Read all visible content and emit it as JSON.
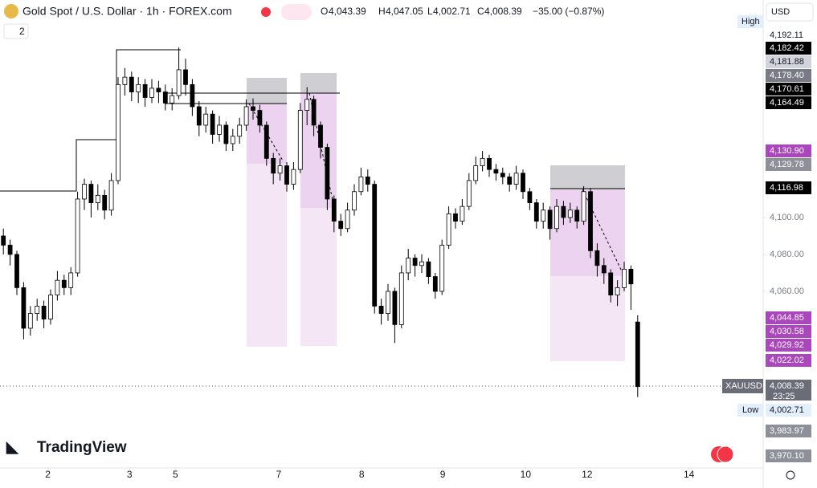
{
  "header": {
    "title": "Gold Spot / U.S. Dollar · 1h · FOREX.com",
    "o_label": "O",
    "o": "4,043.39",
    "h_label": "H",
    "h": "4,047.05",
    "l_label": "L",
    "l": "4,002.71",
    "c_label": "C",
    "c": "4,008.39",
    "change": "−35.00 (−0.87%)",
    "indicators": "2"
  },
  "scale": {
    "currency": "USD",
    "high": "High",
    "low": "Low",
    "symbol": "XAUUSD",
    "countdown": "23:25",
    "labels": [
      "4,192.11",
      "4,182.42",
      "4,181.88",
      "4,178.40",
      "4,170.61",
      "4,164.49",
      "4,130.90",
      "4,129.78",
      "4,116.98",
      "4,044.85",
      "4,030.58",
      "4,029.92",
      "4,022.02",
      "4,008.39",
      "4,002.71",
      "3,983.97",
      "3,970.10"
    ]
  },
  "brand": "TradingView",
  "chart_data": {
    "type": "candlestick",
    "up_color": "#ffffff",
    "down_color": "#000000",
    "border_color": "#000000",
    "xlim": [
      -0.5,
      112
    ],
    "ylim": [
      3961.3,
      4217.8
    ],
    "xticks": [
      {
        "value": 6.6,
        "label": "2"
      },
      {
        "value": 18.7,
        "label": "3"
      },
      {
        "value": 25.5,
        "label": "5"
      },
      {
        "value": 40.8,
        "label": "7"
      },
      {
        "value": 53.1,
        "label": "8"
      },
      {
        "value": 65.1,
        "label": "9"
      },
      {
        "value": 77.4,
        "label": "10"
      },
      {
        "value": 86.5,
        "label": "12"
      },
      {
        "value": 101.6,
        "label": "14"
      }
    ],
    "yticks": [
      {
        "value": 4100,
        "label": "4,100.00"
      },
      {
        "value": 4080,
        "label": "4,080.00"
      },
      {
        "value": 4060,
        "label": "4,060.00"
      }
    ],
    "open": [
      4090,
      4085,
      4080,
      4062,
      4040,
      4048,
      4052,
      4045,
      4058,
      4066,
      4062,
      4070,
      4110,
      4118,
      4108,
      4112,
      4104,
      4120,
      4172,
      4176,
      4168,
      4172,
      4165,
      4170,
      4168,
      4162,
      4166,
      4180,
      4172,
      4160,
      4150,
      4156,
      4145,
      4150,
      4140,
      4144,
      4150,
      4160,
      4158,
      4150,
      4132,
      4124,
      4128,
      4118,
      4126,
      4158,
      4164,
      4150,
      4138,
      4110,
      4098,
      4094,
      4104,
      4114,
      4122,
      4118,
      4052,
      4048,
      4060,
      4042,
      4070,
      4078,
      4074,
      4076,
      4068,
      4060,
      4085,
      4102,
      4098,
      4106,
      4120,
      4128,
      4132,
      4126,
      4124,
      4122,
      4118,
      4124,
      4114,
      4108,
      4098,
      4104,
      4094,
      4106,
      4100,
      4104,
      4098,
      4114,
      4082,
      4074,
      4070,
      4058,
      4062,
      4072,
      4043.39
    ],
    "high": [
      4094,
      4088,
      4082,
      4065,
      4052,
      4056,
      4055,
      4061,
      4071,
      4069,
      4073,
      4114,
      4121,
      4120,
      4118,
      4115,
      4124,
      4176,
      4181,
      4179,
      4176,
      4175,
      4175,
      4174,
      4172,
      4170,
      4192.11,
      4186,
      4175,
      4163,
      4160,
      4158,
      4155,
      4152,
      4148,
      4154,
      4164,
      4164.49,
      4161,
      4152,
      4135,
      4132,
      4130,
      4130,
      4162,
      4170.61,
      4166,
      4152,
      4140,
      4112,
      4102,
      4108,
      4118,
      4127,
      4126,
      4120,
      4056,
      4064,
      4062,
      4074,
      4083,
      4080,
      4080,
      4078,
      4070,
      4088,
      4106,
      4105,
      4110,
      4124,
      4133,
      4136,
      4134,
      4129,
      4127,
      4124,
      4128,
      4126,
      4116,
      4110,
      4108,
      4106,
      4110,
      4109,
      4108,
      4106,
      4116.98,
      4116,
      4086,
      4078,
      4072,
      4066,
      4076,
      4074,
      4047.05
    ],
    "low": [
      4080,
      4074,
      4058,
      4034,
      4036,
      4044,
      4040,
      4042,
      4055,
      4058,
      4058,
      4068,
      4104,
      4100,
      4104,
      4099,
      4101,
      4118,
      4166,
      4163,
      4162,
      4160,
      4162,
      4162,
      4158,
      4158,
      4164,
      4166,
      4155,
      4144,
      4146,
      4140,
      4141,
      4136,
      4136,
      4140,
      4147,
      4153,
      4146,
      4128,
      4118,
      4120,
      4114,
      4115,
      4124,
      4150,
      4144,
      4132,
      4104,
      4092,
      4090,
      4092,
      4101,
      4112,
      4114,
      4048,
      4042,
      4044,
      4032,
      4040,
      4066,
      4068,
      4070,
      4064,
      4056,
      4058,
      4083,
      4094,
      4096,
      4104,
      4118,
      4125,
      4122,
      4120,
      4118,
      4114,
      4115,
      4110,
      4104,
      4094,
      4094,
      4088,
      4092,
      4096,
      4097,
      4094,
      4096,
      4078,
      4068,
      4064,
      4054,
      4052,
      4060,
      4050,
      4002.71
    ],
    "close": [
      4085,
      4080,
      4062,
      4040,
      4048,
      4052,
      4045,
      4058,
      4066,
      4062,
      4070,
      4110,
      4118,
      4108,
      4112,
      4104,
      4120,
      4172,
      4176,
      4168,
      4172,
      4165,
      4170,
      4168,
      4162,
      4166,
      4180,
      4172,
      4160,
      4150,
      4156,
      4145,
      4150,
      4140,
      4144,
      4150,
      4160,
      4158,
      4150,
      4132,
      4124,
      4128,
      4118,
      4126,
      4158,
      4164,
      4150,
      4138,
      4110,
      4098,
      4094,
      4104,
      4114,
      4122,
      4118,
      4052,
      4048,
      4060,
      4042,
      4070,
      4078,
      4074,
      4076,
      4068,
      4060,
      4085,
      4102,
      4098,
      4106,
      4120,
      4128,
      4132,
      4126,
      4124,
      4122,
      4118,
      4124,
      4114,
      4108,
      4098,
      4104,
      4094,
      4106,
      4100,
      4104,
      4098,
      4114,
      4082,
      4074,
      4070,
      4058,
      4062,
      4072,
      4064,
      4008.39
    ]
  }
}
